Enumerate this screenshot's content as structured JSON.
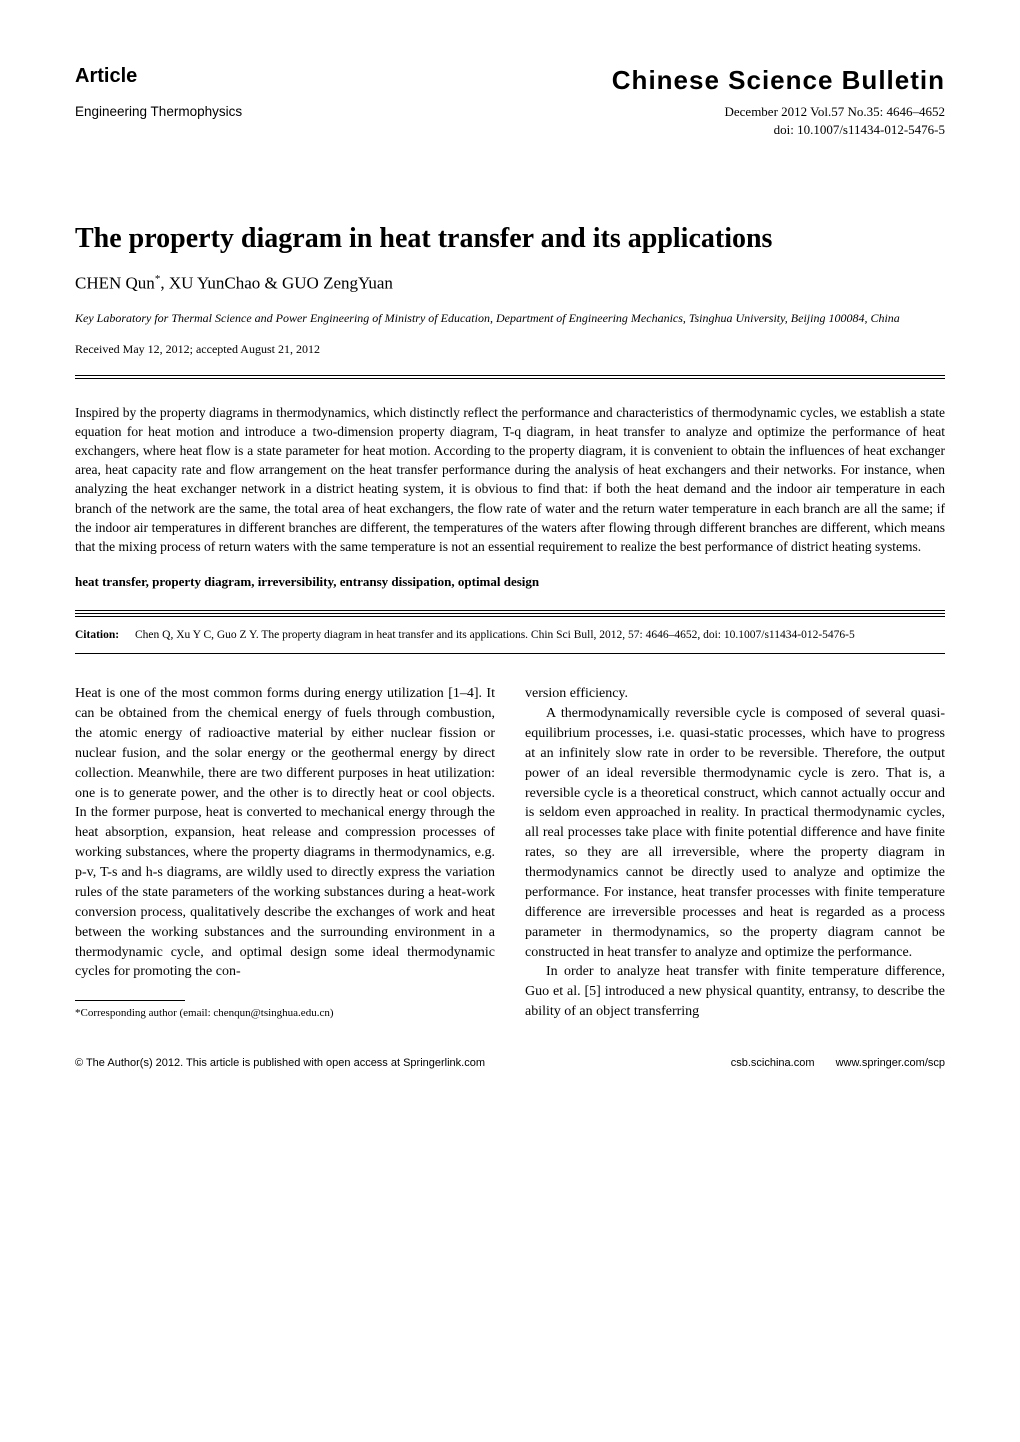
{
  "header": {
    "article_label": "Article",
    "journal_name": "Chinese Science Bulletin",
    "section_name": "Engineering Thermophysics",
    "pub_line": "December 2012   Vol.57   No.35: 4646–4652",
    "doi": "doi: 10.1007/s11434-012-5476-5"
  },
  "title": "The property diagram in heat transfer and its applications",
  "authors_html": "CHEN Qun<sup>*</sup>, XU YunChao & GUO ZengYuan",
  "affiliation": "Key Laboratory for Thermal Science and Power Engineering of Ministry of Education, Department of Engineering Mechanics, Tsinghua University, Beijing 100084, China",
  "dates": "Received May 12, 2012; accepted August 21, 2012",
  "abstract": "Inspired by the property diagrams in thermodynamics, which distinctly reflect the performance and characteristics of thermodynamic cycles, we establish a state equation for heat motion and introduce a two-dimension property diagram, T-q diagram, in heat transfer to analyze and optimize the performance of heat exchangers, where heat flow is a state parameter for heat motion. According to the property diagram, it is convenient to obtain the influences of heat exchanger area, heat capacity rate and flow arrangement on the heat transfer performance during the analysis of heat exchangers and their networks. For instance, when analyzing the heat exchanger network in a district heating system, it is obvious to find that: if both the heat demand and the indoor air temperature in each branch of the network are the same, the total area of heat exchangers, the flow rate of water and the return water temperature in each branch are all the same; if the indoor air temperatures in different branches are different, the temperatures of the waters after flowing through different branches are different, which means that the mixing process of return waters with the same temperature is not an essential requirement to realize the best performance of district heating systems.",
  "keywords": "heat transfer, property diagram, irreversibility, entransy dissipation, optimal design",
  "citation": {
    "label": "Citation:",
    "text": "Chen Q, Xu Y C, Guo Z Y. The property diagram in heat transfer and its applications. Chin Sci Bull, 2012, 57: 4646–4652, doi: 10.1007/s11434-012-5476-5"
  },
  "body": {
    "left": [
      "Heat is one of the most common forms during energy utilization [1–4]. It can be obtained from the chemical energy of fuels through combustion, the atomic energy of radioactive material by either nuclear fission or nuclear fusion, and the solar energy or the geothermal energy by direct collection. Meanwhile, there are two different purposes in heat utilization: one is to generate power, and the other is to directly heat or cool objects. In the former purpose, heat is converted to mechanical energy through the heat absorption, expansion, heat release and compression processes of working substances, where the property diagrams in thermodynamics, e.g. p-v, T-s and h-s diagrams, are wildly used to directly express the variation rules of the state parameters of the working substances during a heat-work conversion process, qualitatively describe the exchanges of work and heat between the working substances and the surrounding environment in a thermodynamic cycle, and optimal design some ideal thermodynamic cycles for promoting the con-"
    ],
    "right": [
      "version efficiency.",
      "A thermodynamically reversible cycle is composed of several quasi-equilibrium processes, i.e. quasi-static processes, which have to progress at an infinitely slow rate in order to be reversible. Therefore, the output power of an ideal reversible thermodynamic cycle is zero. That is, a reversible cycle is a theoretical construct, which cannot actually occur and is seldom even approached in reality. In practical thermodynamic cycles, all real processes take place with finite potential difference and have finite rates, so they are all irreversible, where the property diagram in thermodynamics cannot be directly used to analyze and optimize the performance. For instance, heat transfer processes with finite temperature difference are irreversible processes and heat is regarded as a process parameter in thermodynamics, so the property diagram cannot be constructed in heat transfer to analyze and optimize the performance.",
      "In order to analyze heat transfer with finite temperature difference, Guo et al. [5] introduced a new physical quantity, entransy, to describe the ability of an object transferring"
    ]
  },
  "footnote": "*Corresponding author (email: chenqun@tsinghua.edu.cn)",
  "footer": {
    "left": "© The Author(s) 2012. This article is published with open access at Springerlink.com",
    "right1": "csb.scichina.com",
    "right2": "www.springer.com/scp"
  },
  "colors": {
    "text": "#000000",
    "background": "#ffffff"
  }
}
